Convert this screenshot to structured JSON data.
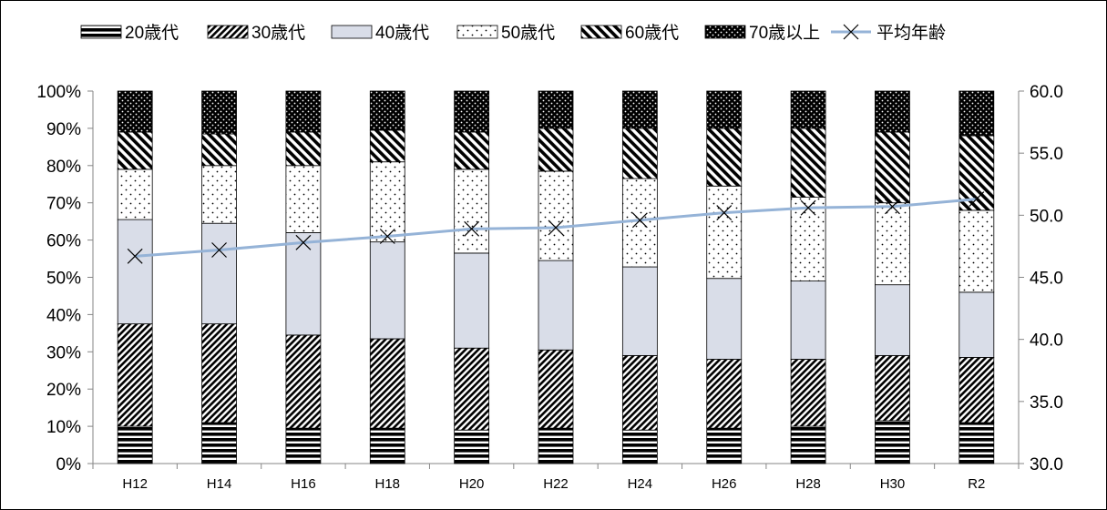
{
  "chart_data": {
    "type": "bar",
    "stacked": true,
    "percent_stacked": true,
    "categories": [
      "H12",
      "H14",
      "H16",
      "H18",
      "H20",
      "H22",
      "H24",
      "H26",
      "H28",
      "H30",
      "R2"
    ],
    "series": [
      {
        "name": "20歳代",
        "pattern": "horizontal-lines",
        "values": [
          10.0,
          11.0,
          9.5,
          9.5,
          9.0,
          9.5,
          9.0,
          9.5,
          10.0,
          11.5,
          11.0
        ]
      },
      {
        "name": "30歳代",
        "pattern": "dense-diagonal",
        "values": [
          27.5,
          26.5,
          25.0,
          24.0,
          22.0,
          21.0,
          20.0,
          18.5,
          18.0,
          17.5,
          17.5
        ]
      },
      {
        "name": "40歳代",
        "pattern": "solid",
        "values": [
          28.0,
          27.0,
          27.5,
          26.0,
          25.5,
          24.0,
          23.8,
          21.7,
          21.0,
          19.0,
          17.5
        ]
      },
      {
        "name": "50歳代",
        "pattern": "dots",
        "values": [
          13.5,
          15.5,
          18.0,
          21.5,
          22.5,
          24.0,
          23.7,
          24.8,
          22.5,
          22.0,
          22.0
        ]
      },
      {
        "name": "60歳代",
        "pattern": "diagonal",
        "values": [
          10.0,
          8.5,
          9.0,
          8.5,
          10.0,
          11.5,
          13.5,
          15.5,
          18.5,
          19.0,
          20.0
        ]
      },
      {
        "name": "70歳以上",
        "pattern": "black-dots",
        "values": [
          11.0,
          11.5,
          11.0,
          10.5,
          11.0,
          10.0,
          10.0,
          10.0,
          10.0,
          11.0,
          12.0
        ]
      }
    ],
    "line_series": {
      "name": "平均年齢",
      "axis": "right",
      "values": [
        46.7,
        47.2,
        47.8,
        48.3,
        48.9,
        49.0,
        49.6,
        50.2,
        50.6,
        50.7,
        51.3
      ],
      "color": "#95b3d7"
    },
    "y_left": {
      "min": 0,
      "max": 100,
      "step": 10,
      "format": "percent",
      "tick_labels": [
        "0%",
        "10%",
        "20%",
        "30%",
        "40%",
        "50%",
        "60%",
        "70%",
        "80%",
        "90%",
        "100%"
      ]
    },
    "y_right": {
      "min": 30,
      "max": 60,
      "step": 5,
      "tick_labels": [
        "30.0",
        "35.0",
        "40.0",
        "45.0",
        "50.0",
        "55.0",
        "60.0"
      ]
    },
    "legend_position": "top",
    "grid": false,
    "colors": {
      "fill_40": "#d9dde8",
      "line": "#95b3d7",
      "marker": "#000000"
    }
  }
}
